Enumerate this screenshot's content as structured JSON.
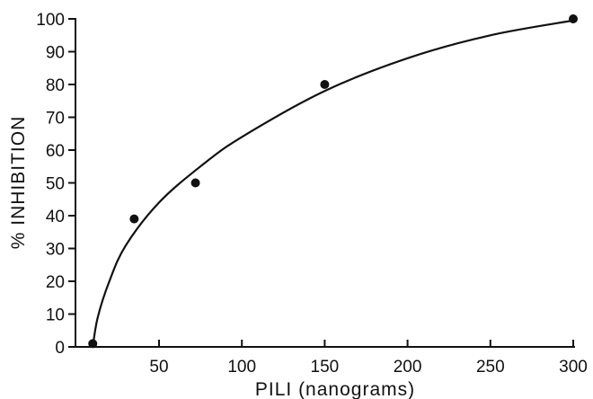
{
  "chart_data": {
    "type": "scatter",
    "title": "",
    "xlabel": "PILI (nanograms)",
    "ylabel": "% INHIBITION",
    "xlim": [
      10,
      300
    ],
    "ylim": [
      0,
      100
    ],
    "x_ticks": [
      50,
      100,
      150,
      200,
      250,
      300
    ],
    "y_ticks": [
      0,
      10,
      20,
      30,
      40,
      50,
      60,
      70,
      80,
      90,
      100
    ],
    "grid": false,
    "series": [
      {
        "points": [
          {
            "x": 10,
            "y": 1
          },
          {
            "x": 35,
            "y": 39
          },
          {
            "x": 72,
            "y": 50
          },
          {
            "x": 150,
            "y": 80
          },
          {
            "x": 300,
            "y": 100
          }
        ]
      }
    ],
    "fitted_curve": [
      {
        "x": 10,
        "y": 0
      },
      {
        "x": 13,
        "y": 9
      },
      {
        "x": 20,
        "y": 20
      },
      {
        "x": 30,
        "y": 31
      },
      {
        "x": 50,
        "y": 44
      },
      {
        "x": 75,
        "y": 55
      },
      {
        "x": 100,
        "y": 64
      },
      {
        "x": 150,
        "y": 78
      },
      {
        "x": 200,
        "y": 88
      },
      {
        "x": 250,
        "y": 95
      },
      {
        "x": 300,
        "y": 99.5
      }
    ]
  }
}
